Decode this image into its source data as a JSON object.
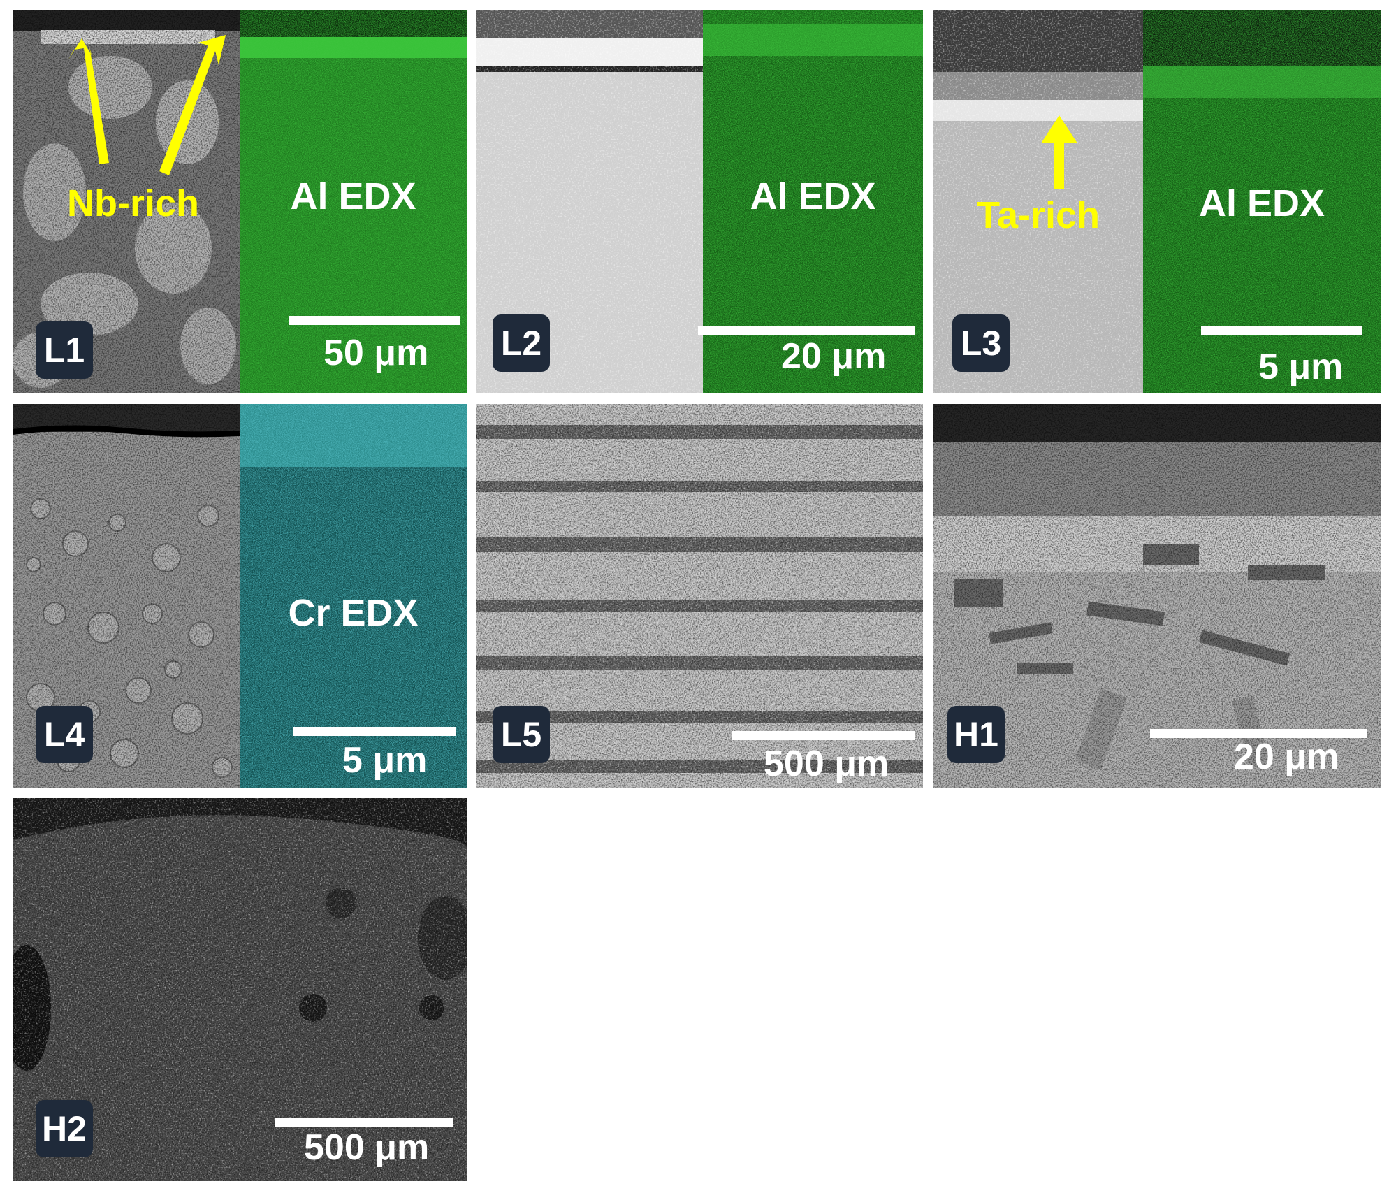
{
  "colors": {
    "badge_bg": "#1f2a3a",
    "annotation": "#ffff00",
    "al_edx": "#1e8a1e",
    "cr_edx": "#1c6f6f",
    "scalebar": "#ffffff"
  },
  "panels": {
    "L1": {
      "label": "L1",
      "map_label": "Al EDX",
      "scale": "50 μm",
      "annotation": "Nb-rich"
    },
    "L2": {
      "label": "L2",
      "map_label": "Al EDX",
      "scale": "20 μm"
    },
    "L3": {
      "label": "L3",
      "map_label": "Al EDX",
      "scale": "5 μm",
      "annotation": "Ta-rich"
    },
    "L4": {
      "label": "L4",
      "map_label": "Cr EDX",
      "scale": "5 μm"
    },
    "L5": {
      "label": "L5",
      "scale": "500 μm"
    },
    "H1": {
      "label": "H1",
      "scale": "20 μm"
    },
    "H2": {
      "label": "H2",
      "scale": "500 μm"
    }
  }
}
